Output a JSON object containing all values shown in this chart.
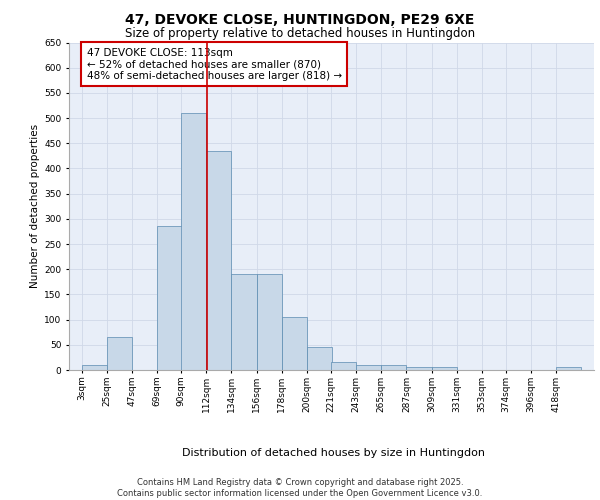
{
  "title_line1": "47, DEVOKE CLOSE, HUNTINGDON, PE29 6XE",
  "title_line2": "Size of property relative to detached houses in Huntingdon",
  "xlabel": "Distribution of detached houses by size in Huntingdon",
  "ylabel": "Number of detached properties",
  "bins": [
    3,
    25,
    47,
    69,
    90,
    112,
    134,
    156,
    178,
    200,
    221,
    243,
    265,
    287,
    309,
    331,
    353,
    374,
    396,
    418,
    440
  ],
  "values": [
    10,
    65,
    0,
    285,
    510,
    435,
    190,
    190,
    105,
    45,
    15,
    10,
    10,
    5,
    5,
    0,
    0,
    0,
    0,
    5
  ],
  "bar_color": "#c8d8e8",
  "bar_edge_color": "#5a8ab0",
  "grid_color": "#d0d8e8",
  "background_color": "#e8eef8",
  "vline_x": 113,
  "vline_color": "#cc0000",
  "annotation_text": "47 DEVOKE CLOSE: 113sqm\n← 52% of detached houses are smaller (870)\n48% of semi-detached houses are larger (818) →",
  "annotation_box_color": "white",
  "annotation_box_edge": "#cc0000",
  "ylim": [
    0,
    650
  ],
  "yticks": [
    0,
    50,
    100,
    150,
    200,
    250,
    300,
    350,
    400,
    450,
    500,
    550,
    600,
    650
  ],
  "footer_line1": "Contains HM Land Registry data © Crown copyright and database right 2025.",
  "footer_line2": "Contains public sector information licensed under the Open Government Licence v3.0.",
  "title_fontsize": 10,
  "subtitle_fontsize": 8.5,
  "tick_label_fontsize": 6.5,
  "footer_fontsize": 6,
  "ylabel_fontsize": 7.5,
  "xlabel_fontsize": 8,
  "annotation_fontsize": 7.5
}
